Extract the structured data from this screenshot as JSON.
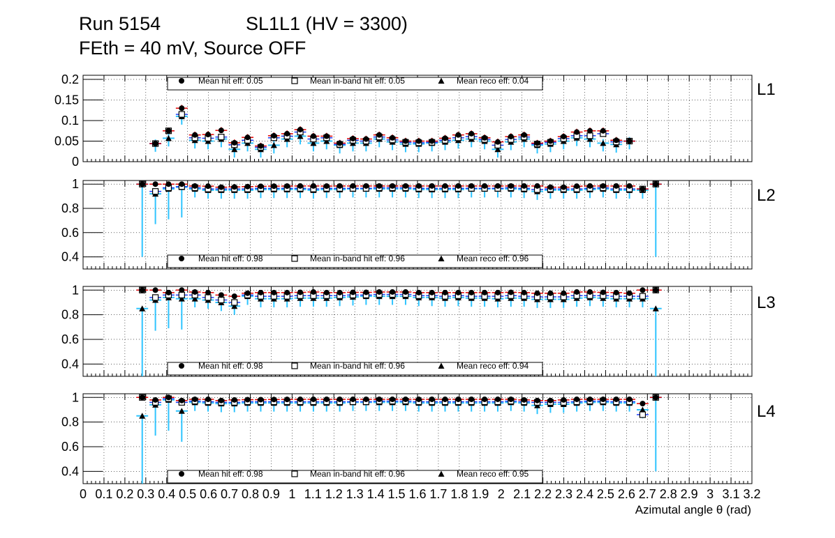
{
  "chart_data": {
    "type": "scatter",
    "title": {
      "run": "Run 5154",
      "chamber": "SL1L1 (HV = 3300)",
      "conditions": "FEth = 40 mV, Source OFF"
    },
    "xlabel": "Azimutal angle θ (rad)",
    "xlim": [
      0,
      3.2
    ],
    "x_tick_labels": [
      "0",
      "0.1",
      "0.2",
      "0.3",
      "0.4",
      "0.5",
      "0.6",
      "0.7",
      "0.8",
      "0.9",
      "1",
      "1.1",
      "1.2",
      "1.3",
      "1.4",
      "1.5",
      "1.6",
      "1.7",
      "1.8",
      "1.9",
      "2",
      "2.1",
      "2.2",
      "2.3",
      "2.4",
      "2.5",
      "2.6",
      "2.7",
      "2.8",
      "2.9",
      "3",
      "3.1",
      "3.2"
    ],
    "x": [
      0.283,
      0.346,
      0.409,
      0.472,
      0.535,
      0.598,
      0.661,
      0.724,
      0.787,
      0.85,
      0.913,
      0.976,
      1.039,
      1.102,
      1.165,
      1.228,
      1.291,
      1.354,
      1.417,
      1.48,
      1.543,
      1.606,
      1.669,
      1.732,
      1.795,
      1.858,
      1.921,
      1.984,
      2.047,
      2.11,
      2.173,
      2.236,
      2.299,
      2.362,
      2.425,
      2.488,
      2.551,
      2.614,
      2.677,
      2.74
    ],
    "series_names": [
      "Mean hit  eff",
      "Mean in-band hit eff",
      "Mean reco eff"
    ],
    "panels": [
      {
        "name": "L1",
        "ylim": [
          0,
          0.21
        ],
        "y_ticks": [
          "0",
          "0.05",
          "0.1",
          "0.15",
          "0.2"
        ],
        "legend": {
          "hit": "Mean hit  eff: 0.05",
          "inband": "Mean in-band hit eff: 0.05",
          "reco": "Mean reco eff: 0.04"
        },
        "hit": [
          null,
          0.044,
          0.075,
          0.13,
          0.065,
          0.066,
          0.076,
          0.046,
          0.059,
          0.038,
          0.063,
          0.068,
          0.078,
          0.062,
          0.062,
          0.045,
          0.056,
          0.055,
          0.065,
          0.058,
          0.05,
          0.05,
          0.05,
          0.057,
          0.065,
          0.068,
          0.058,
          0.048,
          0.061,
          0.065,
          0.045,
          0.05,
          0.061,
          0.072,
          0.075,
          0.075,
          0.052,
          0.05,
          null,
          null
        ],
        "inband": [
          null,
          0.044,
          0.075,
          0.115,
          0.058,
          0.057,
          0.06,
          0.041,
          0.052,
          0.035,
          0.058,
          0.062,
          0.072,
          0.055,
          0.058,
          0.042,
          0.052,
          0.05,
          0.06,
          0.053,
          0.047,
          0.046,
          0.047,
          0.052,
          0.058,
          0.061,
          0.054,
          0.04,
          0.054,
          0.06,
          0.043,
          0.047,
          0.056,
          0.063,
          0.063,
          0.068,
          0.048,
          0.05,
          null,
          null
        ],
        "reco": [
          null,
          0.044,
          0.057,
          0.11,
          0.052,
          0.05,
          0.055,
          0.03,
          0.045,
          0.03,
          0.04,
          0.055,
          0.062,
          0.045,
          0.05,
          0.04,
          0.045,
          0.045,
          0.055,
          0.048,
          0.043,
          0.043,
          0.045,
          0.048,
          0.052,
          0.055,
          0.05,
          0.03,
          0.048,
          0.055,
          0.04,
          0.043,
          0.05,
          0.058,
          0.055,
          0.045,
          0.042,
          0.05,
          null,
          null
        ]
      },
      {
        "name": "L2",
        "ylim": [
          0.3,
          1.03
        ],
        "y_ticks": [
          "0.4",
          "0.6",
          "0.8",
          "1"
        ],
        "legend": {
          "hit": "Mean hit  eff: 0.98",
          "inband": "Mean in-band hit eff: 0.96",
          "reco": "Mean reco eff: 0.96"
        },
        "hit": [
          1.0,
          1.0,
          1.0,
          1.0,
          0.985,
          0.983,
          0.975,
          0.977,
          0.98,
          0.982,
          0.983,
          0.984,
          0.985,
          0.985,
          0.984,
          0.985,
          0.985,
          0.985,
          0.985,
          0.985,
          0.985,
          0.985,
          0.985,
          0.985,
          0.985,
          0.985,
          0.985,
          0.985,
          0.985,
          0.985,
          0.985,
          0.975,
          0.975,
          0.983,
          0.985,
          0.985,
          0.985,
          0.985,
          0.96,
          1.0
        ],
        "inband": [
          1.0,
          0.94,
          0.97,
          0.98,
          0.97,
          0.96,
          0.96,
          0.96,
          0.96,
          0.965,
          0.965,
          0.965,
          0.965,
          0.96,
          0.965,
          0.965,
          0.965,
          0.965,
          0.97,
          0.97,
          0.97,
          0.965,
          0.965,
          0.965,
          0.965,
          0.965,
          0.965,
          0.965,
          0.97,
          0.965,
          0.955,
          0.96,
          0.96,
          0.96,
          0.965,
          0.97,
          0.96,
          0.96,
          0.96,
          1.0
        ],
        "reco": [
          1.0,
          0.92,
          0.96,
          0.975,
          0.96,
          0.95,
          0.95,
          0.95,
          0.95,
          0.955,
          0.955,
          0.955,
          0.955,
          0.95,
          0.955,
          0.955,
          0.96,
          0.96,
          0.96,
          0.96,
          0.96,
          0.955,
          0.955,
          0.955,
          0.955,
          0.96,
          0.96,
          0.96,
          0.96,
          0.955,
          0.94,
          0.95,
          0.95,
          0.95,
          0.955,
          0.96,
          0.95,
          0.95,
          0.95,
          1.0
        ]
      },
      {
        "name": "L3",
        "ylim": [
          0.3,
          1.03
        ],
        "y_ticks": [
          "0.4",
          "0.6",
          "0.8",
          "1"
        ],
        "legend": {
          "hit": "Mean hit  eff: 0.98",
          "inband": "Mean in-band hit eff: 0.96",
          "reco": "Mean reco eff: 0.94"
        },
        "hit": [
          1.0,
          1.0,
          0.98,
          1.0,
          0.985,
          0.98,
          0.96,
          0.95,
          0.975,
          0.98,
          0.98,
          0.98,
          0.982,
          0.985,
          0.98,
          0.98,
          0.982,
          0.982,
          0.985,
          0.985,
          0.985,
          0.98,
          0.98,
          0.98,
          0.98,
          0.98,
          0.98,
          0.98,
          0.982,
          0.98,
          0.975,
          0.975,
          0.975,
          0.985,
          0.985,
          0.982,
          0.98,
          0.975,
          1.0,
          1.0
        ],
        "inband": [
          1.0,
          0.94,
          0.96,
          0.96,
          0.96,
          0.94,
          0.92,
          0.9,
          0.96,
          0.95,
          0.95,
          0.95,
          0.955,
          0.955,
          0.955,
          0.955,
          0.96,
          0.96,
          0.965,
          0.965,
          0.965,
          0.955,
          0.955,
          0.95,
          0.955,
          0.95,
          0.95,
          0.95,
          0.955,
          0.95,
          0.945,
          0.945,
          0.945,
          0.955,
          0.955,
          0.955,
          0.95,
          0.95,
          0.95,
          1.0
        ],
        "reco": [
          0.85,
          0.92,
          0.94,
          0.93,
          0.93,
          0.92,
          0.9,
          0.87,
          0.95,
          0.93,
          0.93,
          0.93,
          0.935,
          0.935,
          0.935,
          0.94,
          0.945,
          0.95,
          0.95,
          0.95,
          0.95,
          0.94,
          0.94,
          0.935,
          0.94,
          0.935,
          0.935,
          0.93,
          0.935,
          0.935,
          0.925,
          0.925,
          0.925,
          0.935,
          0.94,
          0.935,
          0.93,
          0.93,
          0.93,
          0.85
        ]
      },
      {
        "name": "L4",
        "ylim": [
          0.3,
          1.03
        ],
        "y_ticks": [
          "0.4",
          "0.6",
          "0.8",
          "1"
        ],
        "legend": {
          "hit": "Mean hit  eff: 0.98",
          "inband": "Mean in-band hit eff: 0.96",
          "reco": "Mean reco eff: 0.95"
        },
        "hit": [
          1.0,
          0.98,
          1.0,
          0.975,
          0.985,
          0.985,
          0.975,
          0.98,
          0.982,
          0.982,
          0.983,
          0.984,
          0.985,
          0.985,
          0.985,
          0.985,
          0.985,
          0.985,
          0.985,
          0.985,
          0.985,
          0.985,
          0.985,
          0.985,
          0.985,
          0.985,
          0.985,
          0.985,
          0.985,
          0.98,
          0.975,
          0.975,
          0.98,
          0.985,
          0.985,
          0.985,
          0.985,
          0.985,
          0.95,
          1.0
        ],
        "inband": [
          1.0,
          0.96,
          0.99,
          0.96,
          0.97,
          0.965,
          0.96,
          0.96,
          0.965,
          0.965,
          0.965,
          0.965,
          0.965,
          0.965,
          0.965,
          0.965,
          0.965,
          0.965,
          0.97,
          0.97,
          0.97,
          0.965,
          0.965,
          0.965,
          0.965,
          0.965,
          0.965,
          0.965,
          0.97,
          0.965,
          0.96,
          0.96,
          0.96,
          0.965,
          0.97,
          0.97,
          0.965,
          0.965,
          0.86,
          1.0
        ],
        "reco": [
          0.85,
          0.94,
          0.98,
          0.89,
          0.96,
          0.955,
          0.95,
          0.95,
          0.955,
          0.955,
          0.955,
          0.955,
          0.955,
          0.955,
          0.955,
          0.955,
          0.96,
          0.96,
          0.96,
          0.96,
          0.96,
          0.955,
          0.955,
          0.955,
          0.955,
          0.955,
          0.955,
          0.955,
          0.96,
          0.955,
          0.935,
          0.945,
          0.945,
          0.955,
          0.96,
          0.96,
          0.955,
          0.955,
          0.9,
          1.0
        ]
      }
    ]
  }
}
